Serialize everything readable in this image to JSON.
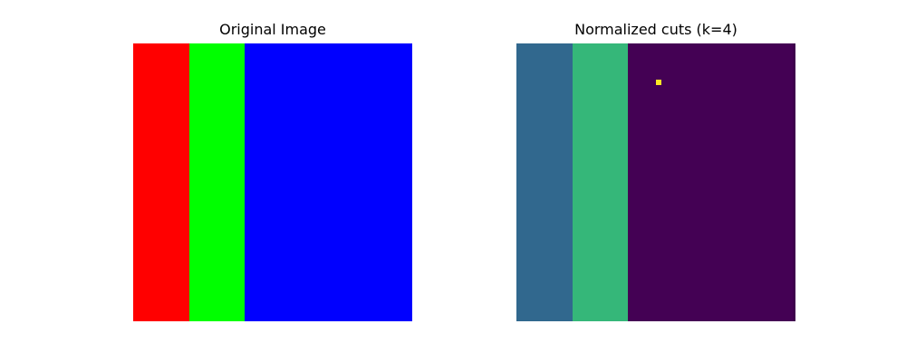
{
  "left_panel": {
    "title": "Original Image",
    "bands": [
      {
        "label": "red-region",
        "color": "#ff0000",
        "from": 0.0,
        "to": 0.2
      },
      {
        "label": "green-region",
        "color": "#00ff00",
        "from": 0.2,
        "to": 0.4
      },
      {
        "label": "blue-region",
        "color": "#0000ff",
        "from": 0.4,
        "to": 1.0
      }
    ]
  },
  "right_panel": {
    "title": "Normalized cuts (k=4)",
    "bands": [
      {
        "label": "segment-1",
        "color": "#31688e",
        "from": 0.0,
        "to": 0.2
      },
      {
        "label": "segment-2",
        "color": "#35b779",
        "from": 0.2,
        "to": 0.4
      },
      {
        "label": "segment-3",
        "color": "#440154",
        "from": 0.4,
        "to": 0.99
      },
      {
        "label": "segment-3-edge",
        "color": "#3f004d",
        "from": 0.99,
        "to": 1.0
      }
    ],
    "outlier_segment": {
      "label": "segment-4",
      "color": "#fde725",
      "col": 0.5,
      "row": 0.13
    }
  }
}
